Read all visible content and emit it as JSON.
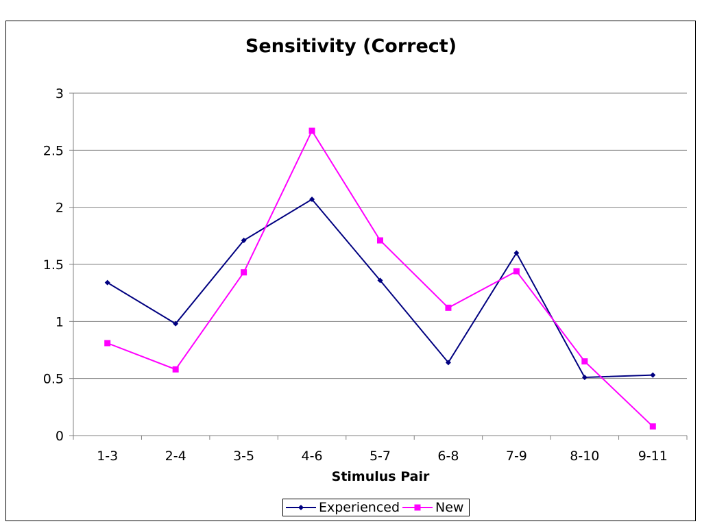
{
  "chart_data": {
    "type": "line",
    "title": "Sensitivity (Correct)",
    "xlabel": "Stimulus Pair",
    "ylabel": "",
    "categories": [
      "1-3",
      "2-4",
      "3-5",
      "4-6",
      "5-7",
      "6-8",
      "7-9",
      "8-10",
      "9-11"
    ],
    "ylim": [
      0,
      3
    ],
    "yticks": [
      "0",
      "0.5",
      "1",
      "1.5",
      "2",
      "2.5",
      "3"
    ],
    "grid": true,
    "legend_position": "bottom",
    "series": [
      {
        "name": "Experienced",
        "color": "#000080",
        "marker": "diamond",
        "values": [
          1.34,
          0.98,
          1.71,
          2.07,
          1.36,
          0.64,
          1.6,
          0.51,
          0.53
        ]
      },
      {
        "name": "New",
        "color": "#ff00ff",
        "marker": "square",
        "values": [
          0.81,
          0.58,
          1.43,
          2.67,
          1.71,
          1.12,
          1.44,
          0.65,
          0.08
        ]
      }
    ]
  }
}
